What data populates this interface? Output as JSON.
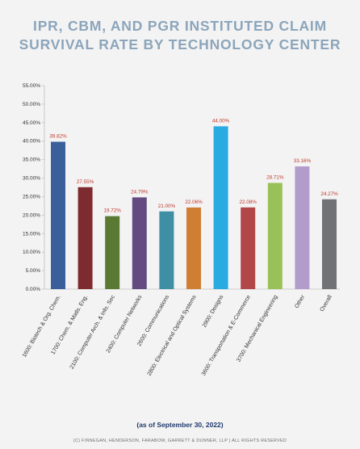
{
  "chart_data": {
    "type": "bar",
    "title_line1": "IPR, CBM, AND PGR INSTITUTED CLAIM",
    "title_line2": "SURVIVAL RATE BY TECHNOLOGY CENTER",
    "categories": [
      "1600: Biotech & Org. Chem.",
      "1700: Chem. & Matls. Eng.",
      "2100: Computer Arch. & Info. Sec",
      "2400: Computer Networks",
      "2600: Communications",
      "2800: Electrical and Optical Systems",
      "2900: Designs",
      "3600: Transportation & E-Commerce",
      "3700: Mechanical Engineering",
      "Other",
      "Overall"
    ],
    "values": [
      39.82,
      27.55,
      19.72,
      24.79,
      21.0,
      22.06,
      44.0,
      22.08,
      28.71,
      33.16,
      24.27
    ],
    "value_labels": [
      "39.82%",
      "27.55%",
      "19.72%",
      "24.79%",
      "21.00%",
      "22.06%",
      "44.00%",
      "22.08%",
      "28.71%",
      "33.16%",
      "24.27%"
    ],
    "bar_colors": [
      "#3a5f9a",
      "#7e2b2f",
      "#5a7a34",
      "#634b82",
      "#3e8ea4",
      "#cf7f34",
      "#29abe2",
      "#b24749",
      "#9ac158",
      "#b19ccb",
      "#707276"
    ],
    "ylim": [
      0,
      55
    ],
    "yticks": [
      "0.00%",
      "5.00%",
      "10.00%",
      "15.00%",
      "20.00%",
      "25.00%",
      "30.00%",
      "35.00%",
      "40.00%",
      "45.00%",
      "50.00%",
      "55.00%"
    ],
    "label_color": "#c0392b",
    "grid": false,
    "legend": "none"
  },
  "footer": {
    "note": "(as of September 30, 2022)",
    "copyright": "(C) FINNEGAN, HENDERSON, FARABOW, GARRETT & DUNNER, LLP | ALL RIGHTS RESERVED"
  }
}
